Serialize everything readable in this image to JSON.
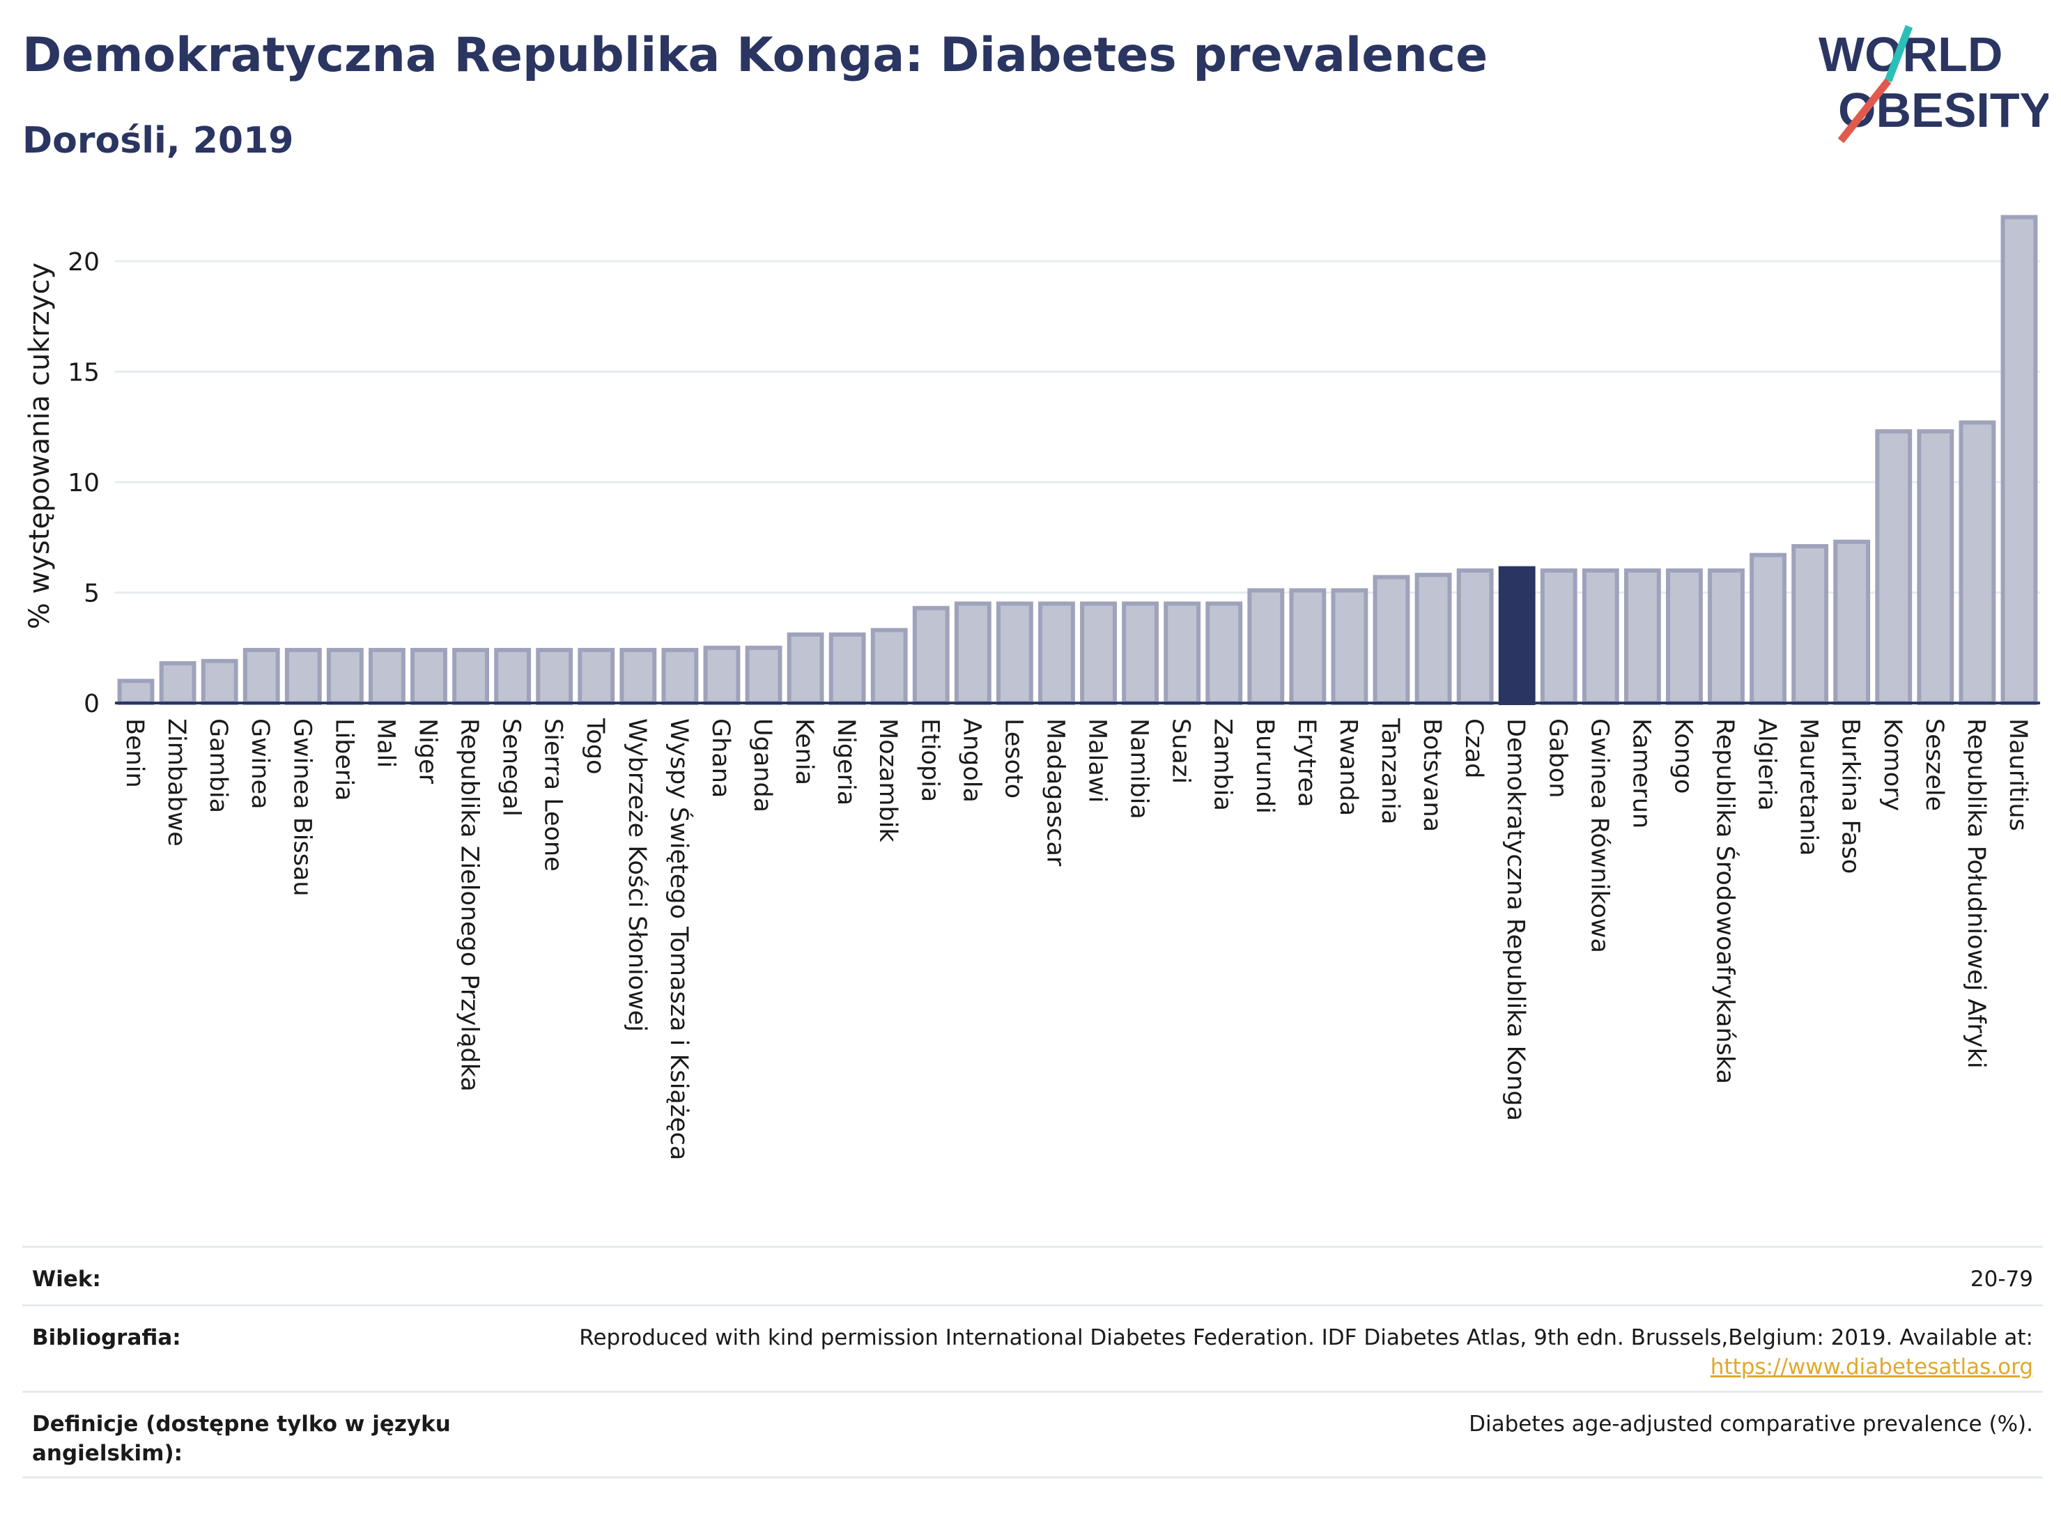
{
  "header": {
    "title": "Demokratyczna Republika Konga: Diabetes prevalence",
    "subtitle": "Dorośli, 2019"
  },
  "logo": {
    "line1": "WORLD",
    "line2": "OBESITY",
    "colors": {
      "text": "#2a3561",
      "slash_red": "#e05a4e",
      "slash_teal": "#2bbfb8"
    }
  },
  "colors": {
    "bar_fill": "#bfc3d2",
    "bar_stroke": "#9ea3bb",
    "highlight_fill": "#2a3561",
    "axis": "#2a3561",
    "grid": "#e6ebef",
    "text": "#1a1a1a"
  },
  "chart_data": {
    "type": "bar",
    "title": "",
    "ylabel": "% występowania cukrzycy",
    "ylim": [
      0,
      23
    ],
    "yticks": [
      0,
      5,
      10,
      15,
      20
    ],
    "grid": true,
    "highlight": "Demokratyczna Republika Konga",
    "categories": [
      "Benin",
      "Zimbabwe",
      "Gambia",
      "Gwinea",
      "Gwinea Bissau",
      "Liberia",
      "Mali",
      "Niger",
      "Republika Zielonego Przylądka",
      "Senegal",
      "Sierra Leone",
      "Togo",
      "Wybrzeże Kości Słoniowej",
      "Wyspy Świętego Tomasza i Książęca",
      "Ghana",
      "Uganda",
      "Kenia",
      "Nigeria",
      "Mozambik",
      "Etiopia",
      "Angola",
      "Lesoto",
      "Madagascar",
      "Malawi",
      "Namibia",
      "Suazi",
      "Zambia",
      "Burundi",
      "Erytrea",
      "Rwanda",
      "Tanzania",
      "Botsvana",
      "Czad",
      "Demokratyczna Republika Konga",
      "Gabon",
      "Gwinea Równikowa",
      "Kamerun",
      "Kongo",
      "Republika Środowoafrykańska",
      "Algieria",
      "Mauretania",
      "Burkina Faso",
      "Komory",
      "Seszele",
      "Republika Południowej Afryki",
      "Mauritius"
    ],
    "values": [
      1.0,
      1.8,
      1.9,
      2.4,
      2.4,
      2.4,
      2.4,
      2.4,
      2.4,
      2.4,
      2.4,
      2.4,
      2.4,
      2.4,
      2.5,
      2.5,
      3.1,
      3.1,
      3.3,
      4.3,
      4.5,
      4.5,
      4.5,
      4.5,
      4.5,
      4.5,
      4.5,
      5.1,
      5.1,
      5.1,
      5.7,
      5.8,
      6.0,
      6.1,
      6.0,
      6.0,
      6.0,
      6.0,
      6.0,
      6.7,
      7.1,
      7.3,
      12.3,
      12.3,
      12.7,
      22.0
    ]
  },
  "footer": {
    "rows": [
      {
        "label": "Wiek:",
        "value": "20-79",
        "link": ""
      },
      {
        "label": "Bibliografia:",
        "value": "Reproduced with kind permission International Diabetes Federation. IDF Diabetes Atlas, 9th edn. Brussels,Belgium: 2019. Available at:",
        "link": "https://www.diabetesatlas.org"
      },
      {
        "label": "Definicje (dostępne tylko w języku angielskim):",
        "value": "Diabetes age-adjusted comparative prevalence (%).",
        "link": ""
      }
    ]
  }
}
